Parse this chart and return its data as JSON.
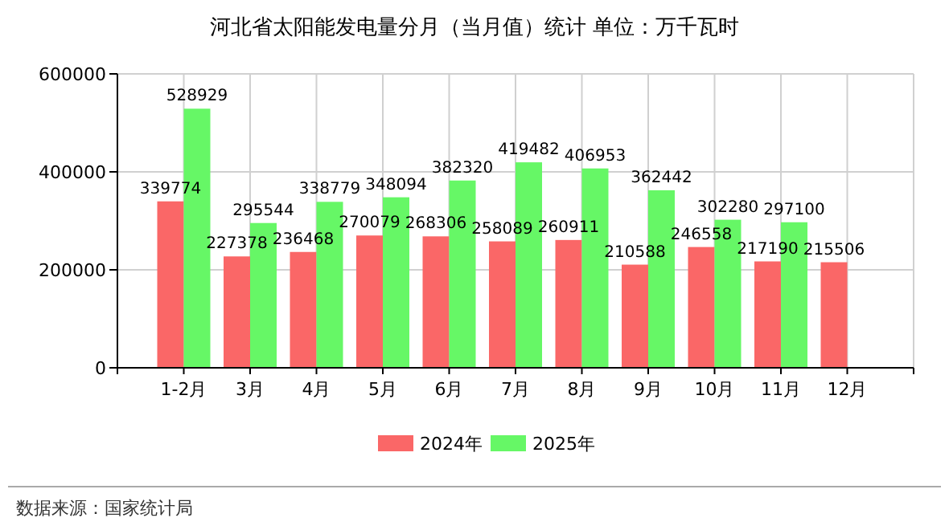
{
  "chart_data": {
    "type": "bar",
    "title": "河北省太阳能发电量分月（当月值）统计  单位：万千瓦时",
    "categories": [
      "1-2月",
      "3月",
      "4月",
      "5月",
      "6月",
      "7月",
      "8月",
      "9月",
      "10月",
      "11月",
      "12月"
    ],
    "series": [
      {
        "name": "2024年",
        "color": "#fa6767",
        "values": [
          339774,
          227378,
          236468,
          270079,
          268306,
          258089,
          260911,
          210588,
          246558,
          217190,
          215506
        ]
      },
      {
        "name": "2025年",
        "color": "#66f766",
        "values": [
          528929,
          295544,
          338779,
          348094,
          382320,
          419482,
          406953,
          362442,
          302280,
          297100,
          null
        ]
      }
    ],
    "ylim": [
      0,
      600000
    ],
    "yticks": [
      0,
      200000,
      400000,
      600000
    ],
    "grid": true,
    "legend": "bottom",
    "data_labels": true,
    "annotations": [
      "数据来源：国家统计局"
    ]
  }
}
